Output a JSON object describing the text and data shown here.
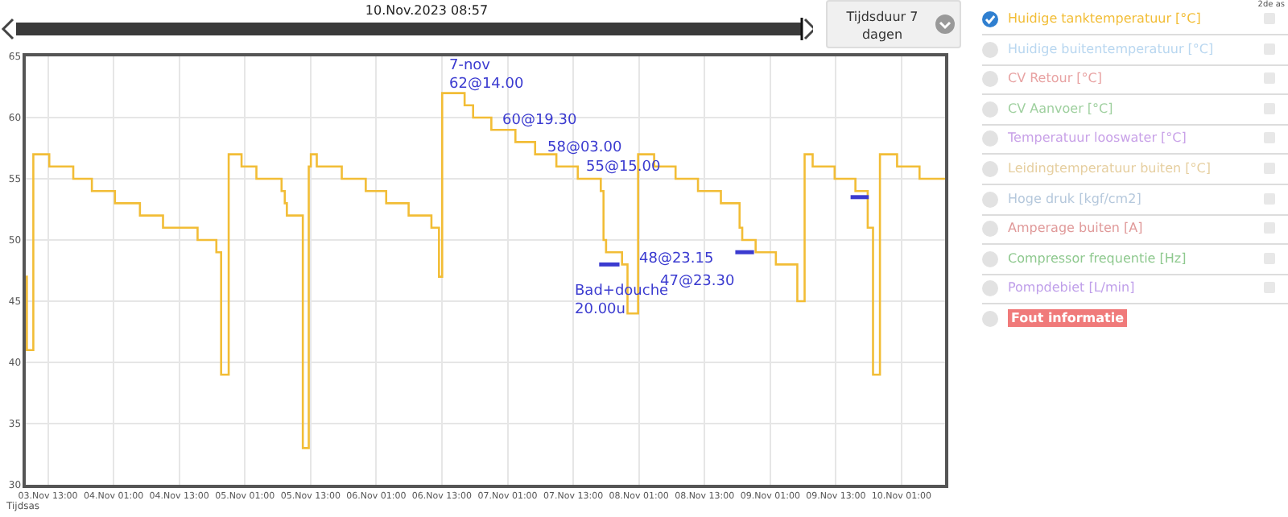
{
  "chart_data": {
    "type": "step",
    "title": "10.Nov.2023 08:57",
    "xlabel": "Tijdsas",
    "xlim": [
      "2023-11-03T08:57",
      "2023-11-10T08:57"
    ],
    "xticks": [
      {
        "value": "2023-11-03T13:00",
        "label": "03.Nov 13:00"
      },
      {
        "value": "2023-11-04T01:00",
        "label": "04.Nov 01:00"
      },
      {
        "value": "2023-11-04T13:00",
        "label": "04.Nov 13:00"
      },
      {
        "value": "2023-11-05T01:00",
        "label": "05.Nov 01:00"
      },
      {
        "value": "2023-11-05T13:00",
        "label": "05.Nov 13:00"
      },
      {
        "value": "2023-11-06T01:00",
        "label": "06.Nov 01:00"
      },
      {
        "value": "2023-11-06T13:00",
        "label": "06.Nov 13:00"
      },
      {
        "value": "2023-11-07T01:00",
        "label": "07.Nov 01:00"
      },
      {
        "value": "2023-11-07T13:00",
        "label": "07.Nov 13:00"
      },
      {
        "value": "2023-11-08T01:00",
        "label": "08.Nov 01:00"
      },
      {
        "value": "2023-11-08T13:00",
        "label": "08.Nov 13:00"
      },
      {
        "value": "2023-11-09T01:00",
        "label": "09.Nov 01:00"
      },
      {
        "value": "2023-11-09T13:00",
        "label": "09.Nov 13:00"
      },
      {
        "value": "2023-11-10T01:00",
        "label": "10.Nov 01:00"
      }
    ],
    "ylim": [
      30,
      65
    ],
    "yticks": [
      30,
      35,
      40,
      45,
      50,
      55,
      60,
      65
    ],
    "grid": true,
    "legend": "top right",
    "marker": "none",
    "line_style": "solid",
    "series": [
      {
        "name": "Huidige tanktemperatuur [°C]",
        "color": "#f2bd36",
        "x": [
          "2023-11-03T08:57",
          "2023-11-03T09:09",
          "2023-11-03T10:20",
          "2023-11-03T13:15",
          "2023-11-03T17:38",
          "2023-11-03T21:02",
          "2023-11-04T01:15",
          "2023-11-04T05:49",
          "2023-11-04T10:02",
          "2023-11-04T16:21",
          "2023-11-04T19:47",
          "2023-11-04T20:39",
          "2023-11-04T22:02",
          "2023-11-05T00:23",
          "2023-11-05T03:06",
          "2023-11-05T07:42",
          "2023-11-05T08:17",
          "2023-11-05T08:40",
          "2023-11-05T11:35",
          "2023-11-05T12:40",
          "2023-11-05T13:03",
          "2023-11-05T14:08",
          "2023-11-05T18:42",
          "2023-11-05T23:05",
          "2023-11-06T02:49",
          "2023-11-06T06:55",
          "2023-11-06T11:05",
          "2023-11-06T12:28",
          "2023-11-06T13:03",
          "2023-11-06T17:09",
          "2023-11-06T18:42",
          "2023-11-06T22:02",
          "2023-11-07T02:26",
          "2023-11-07T06:02",
          "2023-11-07T09:55",
          "2023-11-07T13:50",
          "2023-11-07T18:02",
          "2023-11-07T18:32",
          "2023-11-07T19:00",
          "2023-11-07T21:55",
          "2023-11-07T22:55",
          "2023-11-07T23:41",
          "2023-11-08T00:51",
          "2023-11-08T03:47",
          "2023-11-08T07:42",
          "2023-11-08T11:48",
          "2023-11-08T15:59",
          "2023-11-08T19:24",
          "2023-11-08T19:53",
          "2023-11-08T22:20",
          "2023-11-09T02:02",
          "2023-11-09T05:57",
          "2023-11-09T07:17",
          "2023-11-09T08:45",
          "2023-11-09T12:46",
          "2023-11-09T16:34",
          "2023-11-09T18:49",
          "2023-11-09T19:47",
          "2023-11-09T21:03",
          "2023-11-10T00:11",
          "2023-11-10T04:17",
          "2023-11-10T08:57"
        ],
        "values": [
          47,
          41,
          57,
          56,
          55,
          54,
          53,
          52,
          51,
          50,
          49,
          39,
          57,
          56,
          55,
          54,
          53,
          52,
          33,
          56,
          57,
          56,
          55,
          54,
          53,
          52,
          51,
          47,
          62,
          61,
          60,
          59,
          58,
          57,
          56,
          55,
          54,
          50,
          49,
          48,
          44,
          44,
          57,
          56,
          55,
          54,
          53,
          51,
          50,
          49,
          48,
          45,
          57,
          56,
          55,
          54,
          51,
          39,
          57,
          56,
          55,
          55
        ]
      },
      {
        "type": "line",
        "color": "#3b3bd0",
        "x": [
          "2023-11-07T17:44",
          "2023-11-07T21:27",
          "2023-11-08T00:00",
          "2023-11-08T18:37",
          "2023-11-08T22:02",
          "2023-11-09T00:00",
          "2023-11-09T15:41",
          "2023-11-09T19:00"
        ],
        "values": [
          48,
          48,
          null,
          49,
          49,
          null,
          53.5,
          53.5
        ]
      }
    ],
    "annotations": [
      "7-nov\n62@14.00",
      {
        "text": "60@19.30",
        "x": "2023-11-06T23:35",
        "y": 59.8
      },
      {
        "text": "58@03.00",
        "x": "2023-11-07T07:47",
        "y": 57.5
      },
      {
        "text": "55@15.00",
        "x": "2023-11-07T14:48",
        "y": 55.9
      },
      "Bad+douche\n20.00u",
      {
        "text": "48@23.15",
        "x": "2023-11-08T00:28",
        "y": 48.4
      },
      "47@23.30",
      "Tijdsduur 7 dagen",
      "2de as",
      "Huidige buitentemperatuur [°C]",
      "CV Retour [°C]",
      "CV Aanvoer [°C]",
      "Temperatuur looswater [°C]",
      "Leidingtemperatuur buiten [°C]",
      "Hoge druk [kgf/cm2]",
      "Amperage buiten [A]",
      "Compressor frequentie [Hz]",
      "Pompdebiet [L/min]",
      "Fout informatie"
    ]
  }
}
